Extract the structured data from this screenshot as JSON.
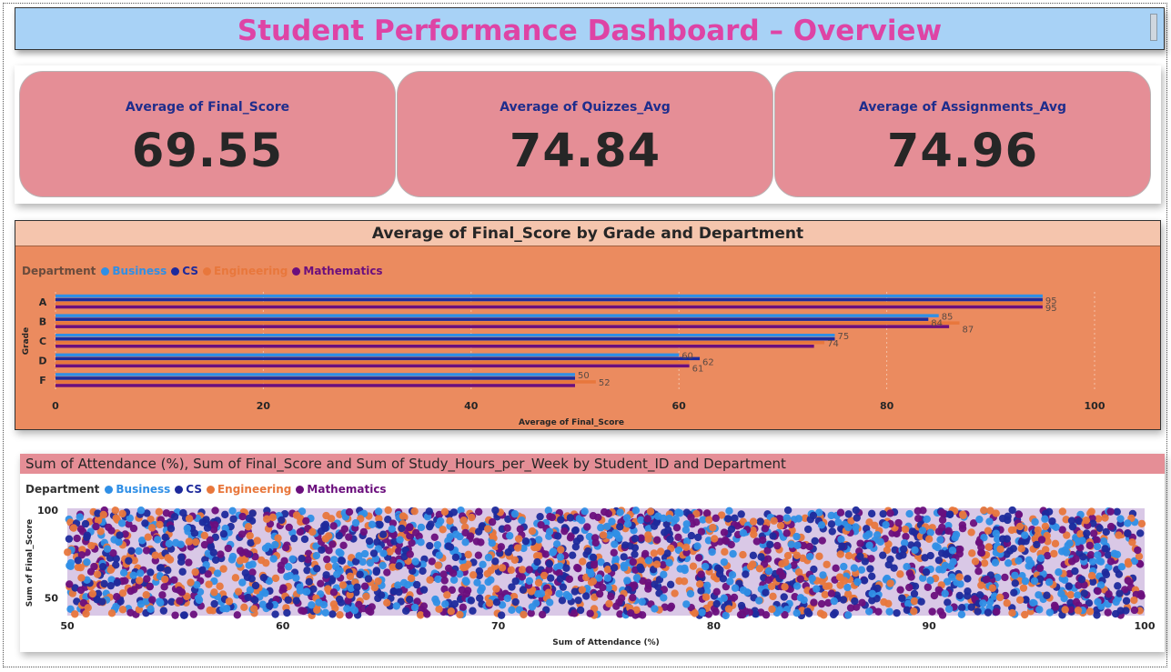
{
  "header": {
    "title": "Student Performance Dashboard – Overview"
  },
  "kpis": [
    {
      "label": "Average of Final_Score",
      "value": "69.55"
    },
    {
      "label": "Average of Quizzes_Avg",
      "value": "74.84"
    },
    {
      "label": "Average of Assignments_Avg",
      "value": "74.96"
    }
  ],
  "colors": {
    "Business": "#2f8fe6",
    "CS": "#1d2a9c",
    "Engineering": "#e8773c",
    "Mathematics": "#6b0f7d",
    "title_accent": "#de44a5",
    "kpi_card": "#e58e96",
    "bar_panel": "#eb8b5f"
  },
  "chart_data": [
    {
      "type": "bar",
      "orientation": "horizontal",
      "title": "Average of Final_Score by Grade and Department",
      "legend_title": "Department",
      "legend_position": "top-left",
      "categories": [
        "A",
        "B",
        "C",
        "D",
        "F"
      ],
      "ylabel": "Grade",
      "xlabel": "Average of Final_Score",
      "xlim": [
        0,
        100
      ],
      "xticks": [
        "0",
        "20",
        "40",
        "60",
        "80",
        "100"
      ],
      "series": [
        {
          "name": "Business",
          "values": [
            95,
            85,
            75,
            60,
            50
          ]
        },
        {
          "name": "CS",
          "values": [
            95,
            84,
            75,
            62,
            50
          ]
        },
        {
          "name": "Engineering",
          "values": [
            95,
            87,
            74,
            61,
            52
          ]
        },
        {
          "name": "Mathematics",
          "values": [
            95,
            86,
            73,
            61,
            50
          ]
        }
      ],
      "data_labels": [
        {
          "category": "A",
          "text": "95",
          "series": "CS"
        },
        {
          "category": "A",
          "text": "95",
          "series": "Mathematics"
        },
        {
          "category": "B",
          "text": "85",
          "series": "Business"
        },
        {
          "category": "B",
          "text": "84",
          "series": "CS"
        },
        {
          "category": "B",
          "text": "87",
          "series": "Engineering"
        },
        {
          "category": "C",
          "text": "75",
          "series": "Business"
        },
        {
          "category": "C",
          "text": "74",
          "series": "Engineering"
        },
        {
          "category": "D",
          "text": "60",
          "series": "Business"
        },
        {
          "category": "D",
          "text": "62",
          "series": "CS"
        },
        {
          "category": "D",
          "text": "61",
          "series": "Engineering"
        },
        {
          "category": "F",
          "text": "50",
          "series": "Business"
        },
        {
          "category": "F",
          "text": "52",
          "series": "Engineering"
        }
      ],
      "grid": true
    },
    {
      "type": "scatter",
      "title": "Sum of Attendance (%), Sum of Final_Score and Sum of Study_Hours_per_Week by Student_ID and Department",
      "legend_title": "Department",
      "legend_position": "top-left",
      "xlabel": "Sum of Attendance (%)",
      "ylabel": "Sum of Final_Score",
      "xlim": [
        50,
        100
      ],
      "ylim": [
        40,
        100
      ],
      "xticks": [
        "50",
        "60",
        "70",
        "80",
        "90",
        "100"
      ],
      "yticks": [
        "50",
        "100"
      ],
      "series_names": [
        "Business",
        "CS",
        "Engineering",
        "Mathematics"
      ],
      "point_count": 2600,
      "distribution": "uniform across x 50–100 and y 40–100 for all departments"
    }
  ]
}
